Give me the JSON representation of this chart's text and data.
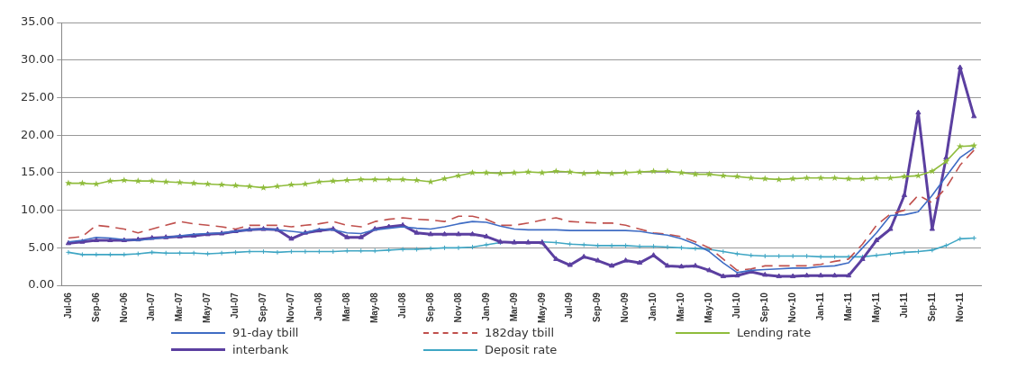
{
  "chart_data": {
    "type": "line",
    "categories": [
      "Jul-06",
      null,
      "Sep-06",
      null,
      "Nov-06",
      null,
      "Jan-07",
      null,
      "Mar-07",
      null,
      "May-07",
      null,
      "Jul-07",
      null,
      "Sep-07",
      null,
      "Nov-07",
      null,
      "Jan-08",
      null,
      "Mar-08",
      null,
      "May-08",
      null,
      "Jul-08",
      null,
      "Sep-08",
      null,
      "Nov-08",
      null,
      "Jan-09",
      null,
      "Mar-09",
      null,
      "May-09",
      null,
      "Jul-09",
      null,
      "Sep-09",
      null,
      "Nov-09",
      null,
      "Jan-10",
      null,
      "Mar-10",
      null,
      "May-10",
      null,
      "Jul-10",
      null,
      "Sep-10",
      null,
      "Nov-10",
      null,
      "Jan-11",
      null,
      "Mar-11",
      null,
      "May-11",
      null,
      "Jul-11",
      null,
      "Sep-11",
      null,
      "Nov-11",
      null
    ],
    "series": [
      {
        "name": "91-day tbill",
        "color": "#3f6cc4",
        "marker": "none",
        "line_style": "solid",
        "values": [
          5.8,
          6.0,
          6.4,
          6.3,
          6.1,
          6.0,
          6.2,
          6.4,
          6.6,
          6.8,
          6.9,
          7.0,
          7.2,
          7.4,
          7.5,
          7.4,
          7.2,
          7.0,
          7.5,
          7.4,
          7.0,
          6.9,
          7.4,
          7.6,
          7.8,
          7.6,
          7.5,
          7.8,
          8.2,
          8.5,
          8.4,
          7.9,
          7.5,
          7.4,
          7.4,
          7.4,
          7.3,
          7.3,
          7.3,
          7.3,
          7.3,
          7.2,
          6.9,
          6.7,
          6.2,
          5.5,
          4.5,
          3.0,
          1.7,
          2.0,
          2.1,
          2.2,
          2.3,
          2.3,
          2.5,
          2.6,
          3.0,
          5.0,
          7.0,
          9.3,
          9.4,
          9.8,
          12.0,
          14.5,
          17.0,
          18.3
        ]
      },
      {
        "name": "182day tbill",
        "color": "#c0504d",
        "marker": "none",
        "line_style": "dashed",
        "values": [
          6.3,
          6.5,
          8.0,
          7.8,
          7.5,
          7.0,
          7.5,
          8.0,
          8.5,
          8.2,
          8.0,
          7.8,
          7.5,
          8.0,
          8.0,
          8.0,
          7.8,
          8.0,
          8.2,
          8.5,
          8.0,
          7.8,
          8.5,
          8.8,
          9.0,
          8.8,
          8.7,
          8.5,
          9.2,
          9.2,
          8.8,
          8.0,
          8.0,
          8.3,
          8.7,
          9.0,
          8.5,
          8.4,
          8.3,
          8.3,
          8.0,
          7.5,
          7.0,
          6.8,
          6.5,
          5.8,
          5.0,
          3.5,
          2.0,
          2.2,
          2.6,
          2.6,
          2.6,
          2.6,
          2.8,
          3.2,
          3.5,
          5.5,
          8.0,
          9.5,
          10.0,
          12.0,
          11.0,
          13.0,
          16.0,
          18.0
        ]
      },
      {
        "name": "Lending rate",
        "color": "#8fbc3c",
        "marker": "star",
        "line_style": "solid",
        "values": [
          13.6,
          13.6,
          13.5,
          13.9,
          14.0,
          13.9,
          13.9,
          13.8,
          13.7,
          13.6,
          13.5,
          13.4,
          13.3,
          13.2,
          13.0,
          13.2,
          13.4,
          13.5,
          13.8,
          13.9,
          14.0,
          14.1,
          14.1,
          14.1,
          14.1,
          14.0,
          13.8,
          14.2,
          14.6,
          15.0,
          15.0,
          14.9,
          15.0,
          15.1,
          15.0,
          15.2,
          15.1,
          14.9,
          15.0,
          14.9,
          15.0,
          15.1,
          15.2,
          15.2,
          15.0,
          14.8,
          14.8,
          14.6,
          14.5,
          14.3,
          14.2,
          14.1,
          14.2,
          14.3,
          14.3,
          14.3,
          14.2,
          14.2,
          14.3,
          14.3,
          14.5,
          14.6,
          15.2,
          16.5,
          18.5,
          18.6
        ]
      },
      {
        "name": "interbank",
        "color": "#5b3fa0",
        "marker": "triangle",
        "line_style": "solid",
        "values": [
          5.6,
          5.8,
          6.0,
          6.0,
          6.0,
          6.1,
          6.3,
          6.4,
          6.5,
          6.6,
          6.8,
          6.9,
          7.2,
          7.4,
          7.5,
          7.4,
          6.2,
          7.0,
          7.3,
          7.5,
          6.4,
          6.4,
          7.5,
          7.8,
          8.0,
          7.0,
          6.8,
          6.8,
          6.8,
          6.8,
          6.5,
          5.8,
          5.7,
          5.7,
          5.7,
          3.5,
          2.7,
          3.8,
          3.3,
          2.6,
          3.3,
          3.0,
          4.0,
          2.6,
          2.5,
          2.6,
          2.0,
          1.2,
          1.3,
          1.8,
          1.4,
          1.2,
          1.2,
          1.3,
          1.3,
          1.3,
          1.3,
          3.5,
          6.0,
          7.5,
          12.0,
          23.0,
          7.5,
          17.0,
          29.0,
          22.5
        ]
      },
      {
        "name": "Deposit rate",
        "color": "#3fa6c4",
        "marker": "cross",
        "line_style": "solid",
        "values": [
          4.4,
          4.1,
          4.1,
          4.1,
          4.1,
          4.2,
          4.4,
          4.3,
          4.3,
          4.3,
          4.2,
          4.3,
          4.4,
          4.5,
          4.5,
          4.4,
          4.5,
          4.5,
          4.5,
          4.5,
          4.6,
          4.6,
          4.6,
          4.7,
          4.8,
          4.8,
          4.9,
          5.0,
          5.0,
          5.1,
          5.4,
          5.7,
          5.8,
          5.8,
          5.8,
          5.7,
          5.5,
          5.4,
          5.3,
          5.3,
          5.3,
          5.2,
          5.2,
          5.1,
          5.0,
          4.9,
          4.8,
          4.5,
          4.2,
          4.0,
          3.9,
          3.9,
          3.9,
          3.9,
          3.8,
          3.8,
          3.8,
          3.8,
          4.0,
          4.2,
          4.4,
          4.5,
          4.7,
          5.3,
          6.2,
          6.3
        ]
      }
    ],
    "ylim": [
      0,
      35
    ],
    "yticks": [
      {
        "value": 0,
        "label": "0.00"
      },
      {
        "value": 5,
        "label": "5.00"
      },
      {
        "value": 10,
        "label": "10.00"
      },
      {
        "value": 15,
        "label": "15.00"
      },
      {
        "value": 20,
        "label": "20.00"
      },
      {
        "value": 25,
        "label": "25.00"
      },
      {
        "value": 30,
        "label": "30.00"
      },
      {
        "value": 35,
        "label": "35.00"
      }
    ],
    "grid": "y",
    "legend": "bottom"
  }
}
